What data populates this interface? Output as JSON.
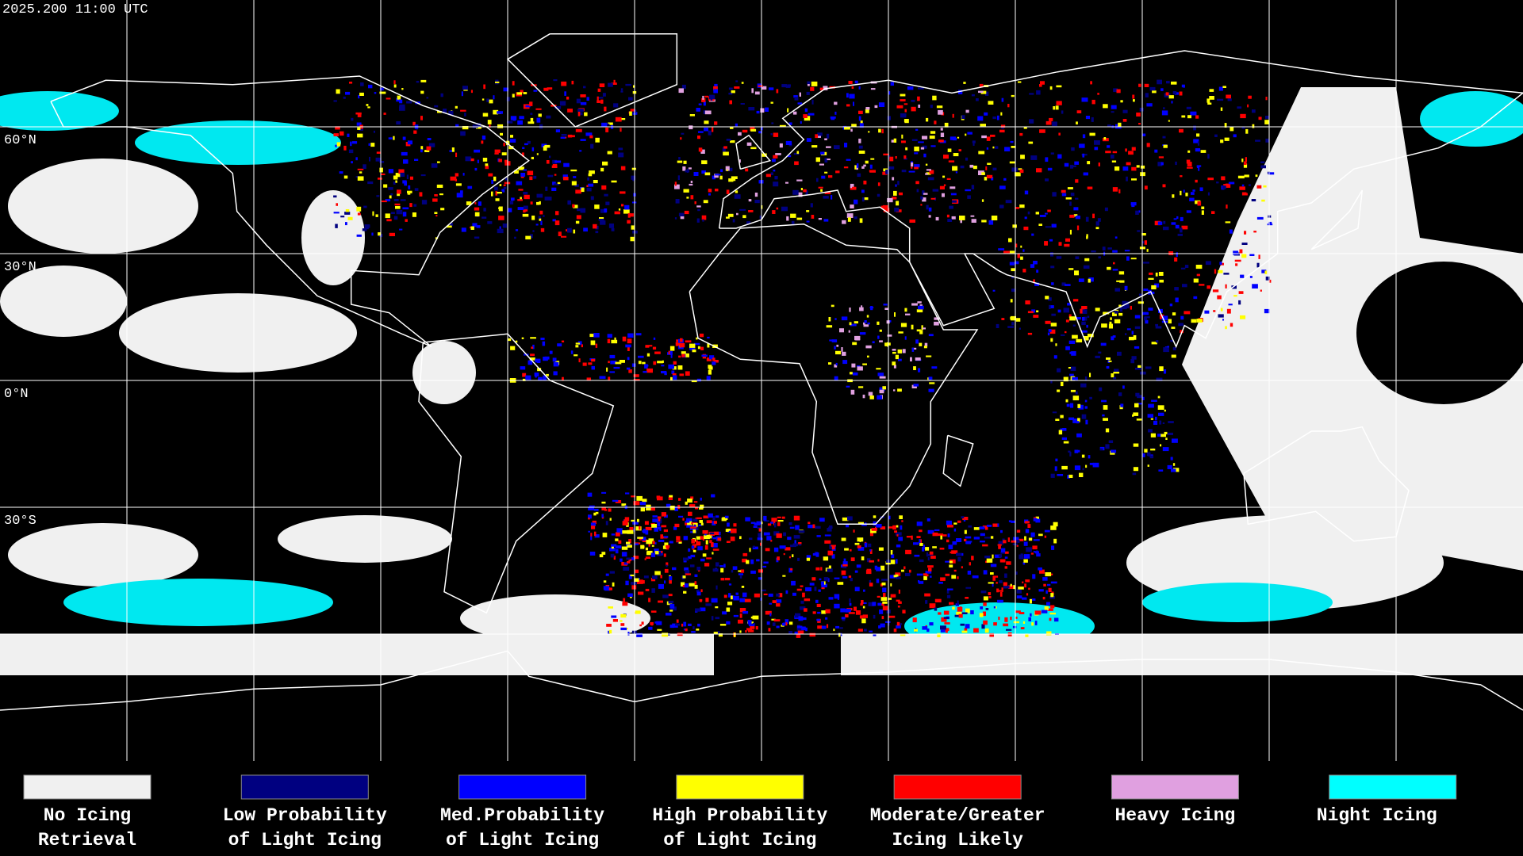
{
  "header": {
    "timestamp": "2025.200 11:00 UTC"
  },
  "map": {
    "latitude_labels": [
      "60°N",
      "30°N",
      "0°N",
      "30°S"
    ]
  },
  "legend": {
    "items": [
      {
        "label": [
          "No Icing",
          "Retrieval"
        ],
        "color": "#f0f0f0"
      },
      {
        "label": [
          "Low Probability",
          "of Light Icing"
        ],
        "color": "#000080"
      },
      {
        "label": [
          "Med.Probability",
          "of Light Icing"
        ],
        "color": "#0000ff"
      },
      {
        "label": [
          "High Probability",
          "of Light Icing"
        ],
        "color": "#ffff00"
      },
      {
        "label": [
          "Moderate/Greater",
          "Icing Likely"
        ],
        "color": "#ff0000"
      },
      {
        "label": [
          "Heavy Icing",
          ""
        ],
        "color": "#e0a0e0"
      },
      {
        "label": [
          "Night Icing",
          ""
        ],
        "color": "#00ffff"
      }
    ]
  }
}
